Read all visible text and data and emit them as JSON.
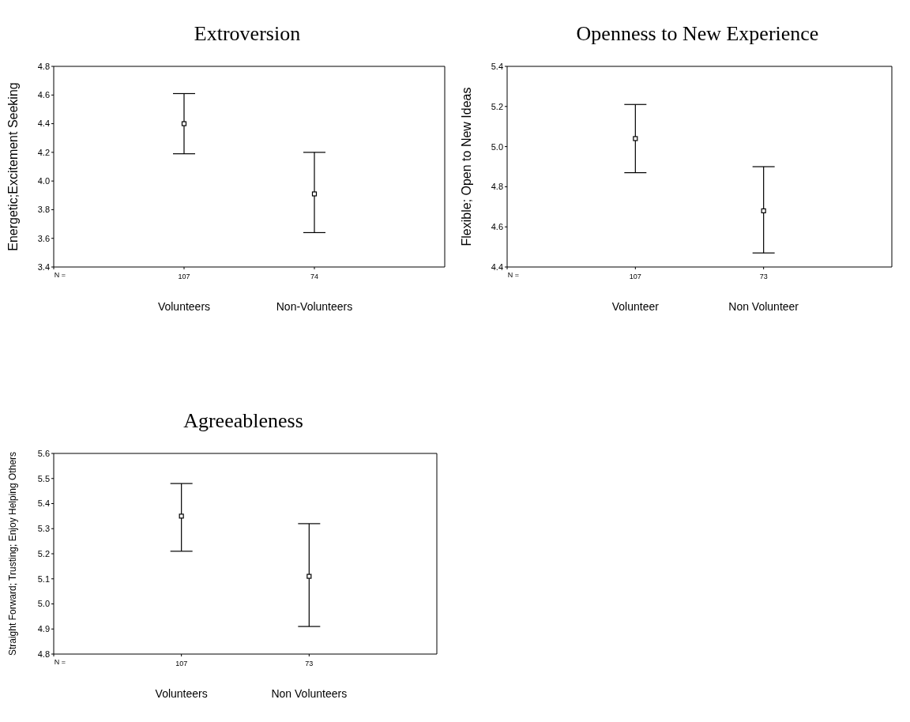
{
  "chart_data": [
    {
      "type": "scatter",
      "title": "Extroversion",
      "ylabel": "Energetic;Excitement Seeking",
      "categories": [
        "Volunteers",
        "Non-Volunteers"
      ],
      "marker": "square",
      "series": [
        {
          "color": "#000000",
          "values": [
            4.4,
            3.91
          ],
          "errors": [
            [
              4.19,
              4.61
            ],
            [
              3.64,
              4.2
            ]
          ]
        }
      ],
      "ylim": [
        3.4,
        4.8
      ],
      "yticks": [
        {
          "value": 3.4,
          "label": "3.4"
        },
        {
          "value": 3.6,
          "label": "3.6"
        },
        {
          "value": 3.8,
          "label": "3.8"
        },
        {
          "value": 4.0,
          "label": "4.0"
        },
        {
          "value": 4.2,
          "label": "4.2"
        },
        {
          "value": 4.4,
          "label": "4.4"
        },
        {
          "value": 4.6,
          "label": "4.6"
        },
        {
          "value": 4.8,
          "label": "4.8"
        }
      ],
      "annotations": [
        "N =",
        "107",
        "74"
      ],
      "grid": false,
      "legend": false
    },
    {
      "type": "scatter",
      "title": "Openness to New Experience",
      "ylabel": "Flexible; Open to New Ideas",
      "categories": [
        "Volunteer",
        "Non Volunteer"
      ],
      "marker": "square",
      "series": [
        {
          "color": "#000000",
          "values": [
            5.04,
            4.68
          ],
          "errors": [
            [
              4.87,
              5.21
            ],
            [
              4.47,
              4.9
            ]
          ]
        }
      ],
      "ylim": [
        4.4,
        5.4
      ],
      "yticks": [
        {
          "value": 4.4,
          "label": "4.4"
        },
        {
          "value": 4.6,
          "label": "4.6"
        },
        {
          "value": 4.8,
          "label": "4.8"
        },
        {
          "value": 5.0,
          "label": "5.0"
        },
        {
          "value": 5.2,
          "label": "5.2"
        },
        {
          "value": 5.4,
          "label": "5.4"
        }
      ],
      "annotations": [
        "N =",
        "107",
        "73"
      ],
      "grid": false,
      "legend": false
    },
    {
      "type": "scatter",
      "title": "Agreeableness",
      "ylabel": "Straight Forward; Trusting; Enjoy Helping Others",
      "categories": [
        "Volunteers",
        "Non Volunteers"
      ],
      "marker": "square",
      "series": [
        {
          "color": "#000000",
          "values": [
            5.35,
            5.11
          ],
          "errors": [
            [
              5.21,
              5.48
            ],
            [
              4.91,
              5.32
            ]
          ]
        }
      ],
      "ylim": [
        4.8,
        5.6
      ],
      "yticks": [
        {
          "value": 4.8,
          "label": "4.8"
        },
        {
          "value": 4.9,
          "label": "4.9"
        },
        {
          "value": 5.0,
          "label": "5.0"
        },
        {
          "value": 5.1,
          "label": "5.1"
        },
        {
          "value": 5.2,
          "label": "5.2"
        },
        {
          "value": 5.3,
          "label": "5.3"
        },
        {
          "value": 5.4,
          "label": "5.4"
        },
        {
          "value": 5.5,
          "label": "5.5"
        },
        {
          "value": 5.6,
          "label": "5.6"
        }
      ],
      "annotations": [
        "N =",
        "107",
        "73"
      ],
      "grid": false,
      "legend": false
    }
  ]
}
